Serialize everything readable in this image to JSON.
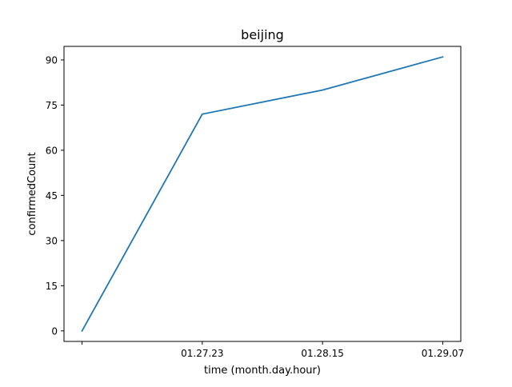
{
  "chart_data": {
    "type": "line",
    "title": "beijing",
    "xlabel": "time (month.day.hour)",
    "ylabel": "confirmedCount",
    "categories": [
      "",
      "01.27.23",
      "01.28.15",
      "01.29.07"
    ],
    "series": [
      {
        "values": [
          0,
          72,
          80,
          91
        ],
        "color": "#1f77b4"
      }
    ],
    "ylim": [
      -3.5,
      94.5
    ],
    "yticks": [
      0,
      15,
      30,
      45,
      60,
      75,
      90
    ],
    "grid": false
  }
}
